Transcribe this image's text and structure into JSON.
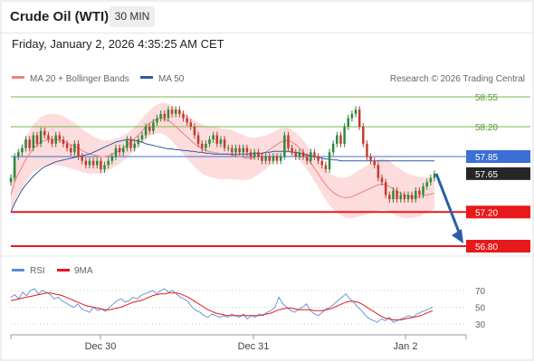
{
  "header": {
    "title": "Crude Oil (WTI)",
    "timeframe": "30 MIN"
  },
  "datetime": "Friday, January 2, 2026 4:35:25 AM CET",
  "legend": {
    "ma20": "MA 20 + Bollinger Bands",
    "ma50": "MA 50",
    "credit": "Research © 2026 Trading Central"
  },
  "rsi_legend": {
    "rsi": "RSI",
    "ma": "9MA"
  },
  "colors": {
    "support": "#e8191b",
    "resistance": "#78b84a",
    "current": "#3b6fd6",
    "ma50": "#2f5a9e",
    "ma20": "#f08080",
    "bbands": "#fbd3d3",
    "arrow": "#2c5ea8",
    "candle_up": "#2a8a3a",
    "candle_down": "#c23b2e"
  },
  "chart_data": [
    {
      "type": "candlestick",
      "x_labels": [
        "Dec 30",
        "Dec 31",
        "Jan 2"
      ],
      "ylim": [
        56.7,
        58.65
      ],
      "levels": [
        {
          "label": "58.55",
          "value": 58.55,
          "kind": "resistance"
        },
        {
          "label": "58.20",
          "value": 58.2,
          "kind": "resistance"
        },
        {
          "label": "57.85",
          "value": 57.85,
          "kind": "current"
        },
        {
          "label": "57.65",
          "value": 57.65,
          "kind": "last"
        },
        {
          "label": "57.20",
          "value": 57.2,
          "kind": "support"
        },
        {
          "label": "56.80",
          "value": 56.8,
          "kind": "support"
        }
      ],
      "close": [
        57.6,
        57.85,
        57.9,
        57.95,
        58.05,
        57.95,
        58.1,
        58.0,
        58.15,
        58.1,
        58.05,
        58.0,
        58.1,
        58.05,
        58.0,
        57.95,
        57.9,
        58.0,
        57.85,
        57.8,
        57.75,
        57.8,
        57.75,
        57.8,
        57.7,
        57.75,
        57.8,
        57.85,
        57.95,
        57.9,
        57.95,
        58.05,
        57.95,
        58.0,
        58.05,
        58.1,
        58.2,
        58.15,
        58.25,
        58.3,
        58.35,
        58.3,
        58.4,
        58.35,
        58.4,
        58.35,
        58.3,
        58.25,
        58.2,
        58.1,
        58.0,
        57.95,
        58.0,
        58.05,
        58.1,
        58.0,
        58.05,
        57.95,
        57.95,
        57.9,
        57.95,
        57.9,
        57.95,
        57.9,
        57.85,
        57.9,
        57.85,
        57.8,
        57.85,
        57.8,
        57.85,
        57.8,
        57.85,
        58.1,
        57.95,
        57.9,
        57.85,
        57.9,
        57.85,
        57.8,
        57.9,
        57.85,
        57.8,
        57.75,
        57.7,
        57.9,
        58.0,
        58.1,
        58.0,
        58.2,
        58.3,
        58.35,
        58.4,
        58.2,
        58.0,
        57.85,
        57.8,
        57.75,
        57.6,
        57.55,
        57.4,
        57.35,
        57.45,
        57.35,
        57.4,
        57.35,
        57.4,
        57.35,
        57.45,
        57.4,
        57.5,
        57.55,
        57.6,
        57.65
      ],
      "ma20": [
        57.4,
        57.55,
        57.65,
        57.73,
        57.82,
        57.88,
        57.95,
        57.98,
        58.02,
        58.04,
        58.05,
        58.05,
        58.05,
        58.04,
        58.03,
        58.01,
        57.99,
        57.97,
        57.95,
        57.92,
        57.9,
        57.88,
        57.87,
        57.86,
        57.85,
        57.85,
        57.86,
        57.88,
        57.9,
        57.92,
        57.95,
        57.98,
        58.02,
        58.06,
        58.1,
        58.15,
        58.2,
        58.24,
        58.27,
        58.29,
        58.3,
        58.29,
        58.27,
        58.24,
        58.2,
        58.16,
        58.12,
        58.08,
        58.04,
        58.0,
        57.97,
        57.94,
        57.92,
        57.91,
        57.9,
        57.89,
        57.88,
        57.88,
        57.88,
        57.87,
        57.86,
        57.85,
        57.84,
        57.83,
        57.83,
        57.84,
        57.86,
        57.88,
        57.9,
        57.93,
        57.96,
        57.99,
        58.02,
        58.04,
        58.04,
        58.02,
        57.99,
        57.95,
        57.9,
        57.84,
        57.78,
        57.71,
        57.65,
        57.58,
        57.52,
        57.47,
        57.43,
        57.4,
        57.38,
        57.37,
        57.37,
        57.38,
        57.4,
        57.42,
        57.44,
        57.46,
        57.48,
        57.5,
        57.52,
        57.53,
        57.52,
        57.5,
        57.47,
        57.44,
        57.42,
        57.4,
        57.39,
        57.38,
        57.38,
        57.38,
        57.39,
        57.4,
        57.41,
        57.42
      ],
      "ma50": [
        57.2,
        57.3,
        57.38,
        57.46,
        57.52,
        57.57,
        57.62,
        57.66,
        57.7,
        57.73,
        57.75,
        57.77,
        57.79,
        57.8,
        57.81,
        57.82,
        57.83,
        57.84,
        57.85,
        57.86,
        57.87,
        57.88,
        57.9,
        57.92,
        57.94,
        57.96,
        57.98,
        58.0,
        58.02,
        58.03,
        58.04,
        58.05,
        58.05,
        58.04,
        58.03,
        58.02,
        58.0,
        57.99,
        57.98,
        57.97,
        57.96,
        57.95,
        57.94,
        57.94,
        57.93,
        57.93,
        57.92,
        57.92,
        57.91,
        57.91,
        57.9,
        57.9,
        57.89,
        57.89,
        57.88,
        57.88,
        57.88,
        57.88,
        57.88,
        57.88,
        57.88,
        57.88,
        57.88,
        57.88,
        57.88,
        57.89,
        57.89,
        57.89,
        57.9,
        57.9,
        57.91,
        57.91,
        57.91,
        57.91,
        57.91,
        57.9,
        57.9,
        57.89,
        57.88,
        57.87,
        57.86,
        57.85,
        57.84,
        57.83,
        57.82,
        57.82,
        57.81,
        57.81,
        57.8,
        57.8,
        57.8,
        57.8,
        57.8,
        57.8,
        57.8,
        57.8,
        57.8,
        57.8,
        57.8,
        57.8,
        57.8,
        57.8,
        57.8,
        57.8,
        57.8,
        57.8,
        57.8,
        57.8,
        57.8,
        57.8,
        57.8,
        57.8,
        57.8,
        57.8
      ]
    },
    {
      "type": "line",
      "name": "RSI",
      "yticks": [
        "70",
        "50",
        "30"
      ],
      "ylim": [
        20,
        80
      ],
      "rsi": [
        62,
        65,
        60,
        68,
        64,
        70,
        72,
        66,
        70,
        68,
        65,
        60,
        62,
        58,
        55,
        52,
        50,
        54,
        48,
        46,
        44,
        50,
        46,
        48,
        45,
        50,
        54,
        58,
        60,
        56,
        58,
        62,
        60,
        64,
        66,
        68,
        70,
        66,
        70,
        72,
        68,
        70,
        66,
        62,
        60,
        56,
        50,
        46,
        44,
        40,
        38,
        42,
        40,
        38,
        40,
        38,
        42,
        40,
        38,
        42,
        36,
        40,
        38,
        42,
        40,
        44,
        46,
        50,
        62,
        54,
        50,
        46,
        44,
        48,
        50,
        54,
        46,
        42,
        40,
        44,
        48,
        50,
        54,
        58,
        62,
        66,
        60,
        56,
        50,
        46,
        40,
        36,
        34,
        32,
        36,
        34,
        38,
        32,
        34,
        36,
        38,
        40,
        38,
        42,
        44,
        46,
        48,
        50
      ],
      "ma9": [
        58,
        59,
        60,
        61,
        62,
        63,
        64,
        65,
        66,
        67,
        67,
        66,
        65,
        64,
        62,
        60,
        58,
        56,
        54,
        52,
        51,
        50,
        49,
        48,
        47,
        47,
        48,
        49,
        50,
        52,
        54,
        56,
        57,
        58,
        60,
        62,
        64,
        65,
        66,
        66,
        67,
        67,
        67,
        66,
        64,
        62,
        59,
        56,
        53,
        50,
        47,
        45,
        43,
        42,
        41,
        40,
        40,
        40,
        40,
        40,
        40,
        40,
        40,
        40,
        41,
        42,
        43,
        45,
        47,
        48,
        49,
        49,
        48,
        47,
        47,
        47,
        47,
        46,
        46,
        46,
        47,
        48,
        50,
        52,
        54,
        56,
        57,
        57,
        56,
        54,
        51,
        48,
        45,
        42,
        39,
        37,
        36,
        35,
        35,
        35,
        36,
        37,
        38,
        39,
        40,
        42,
        44,
        46
      ]
    }
  ]
}
